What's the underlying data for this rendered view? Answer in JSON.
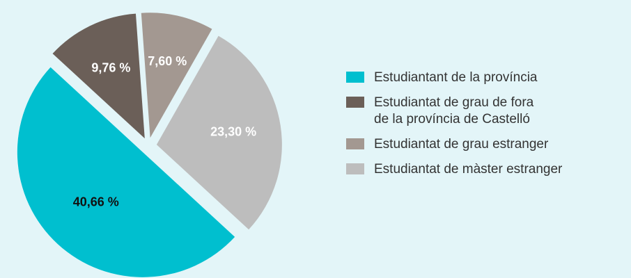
{
  "chart_data": {
    "type": "pie",
    "categories": [
      "Estudiantant de la província",
      "Estudiantat de grau de fora de la província de Castelló",
      "Estudiantat de grau estranger",
      "Estudiantat de màster estranger"
    ],
    "values": [
      40.66,
      9.76,
      7.6,
      23.3
    ],
    "value_labels": [
      "40,66 %",
      "9,76 %",
      "7,60 %",
      "23,30 %"
    ],
    "colors": [
      "#00bfcf",
      "#6b5f58",
      "#a39891",
      "#bdbdbd"
    ],
    "legend": "right"
  }
}
